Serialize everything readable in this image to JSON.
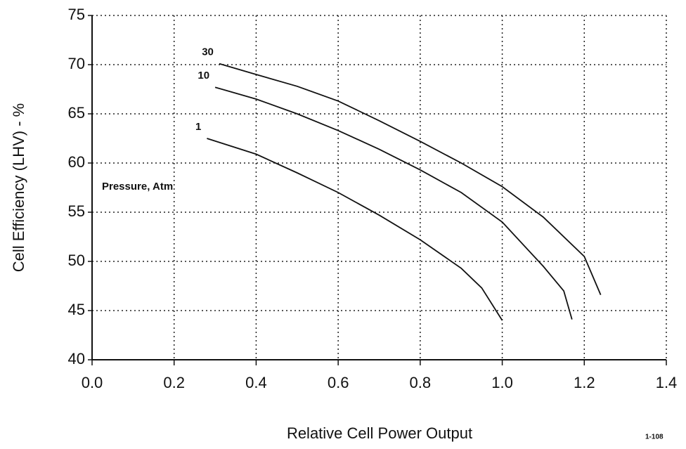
{
  "chart_data": {
    "type": "line",
    "x_label": "Relative Cell Power Output",
    "y_label": "Cell Efficiency (LHV) - %",
    "annotations": [
      "Pressure, Atm",
      "1-108"
    ],
    "series": [
      {
        "name": "30",
        "color": "#111111",
        "x": [
          0.31,
          0.4,
          0.5,
          0.6,
          0.7,
          0.8,
          0.9,
          1.0,
          1.1,
          1.2,
          1.24
        ],
        "values": [
          70.1,
          69.0,
          67.8,
          66.3,
          64.3,
          62.2,
          60.0,
          57.6,
          54.5,
          50.5,
          46.6
        ]
      },
      {
        "name": "10",
        "color": "#111111",
        "x": [
          0.3,
          0.4,
          0.5,
          0.6,
          0.7,
          0.8,
          0.9,
          1.0,
          1.1,
          1.15,
          1.17
        ],
        "values": [
          67.7,
          66.5,
          65.0,
          63.3,
          61.4,
          59.3,
          57.0,
          54.0,
          49.5,
          47.0,
          44.1
        ]
      },
      {
        "name": "1",
        "color": "#111111",
        "x": [
          0.28,
          0.4,
          0.5,
          0.6,
          0.7,
          0.8,
          0.9,
          0.95,
          1.0
        ],
        "values": [
          62.5,
          60.9,
          59.0,
          57.0,
          54.7,
          52.2,
          49.3,
          47.3,
          44.0
        ]
      }
    ],
    "xlim": [
      0,
      1.4
    ],
    "xticks": [
      {
        "value": 0,
        "label": "0.0"
      },
      0.2,
      0.4,
      0.6,
      0.8,
      {
        "value": 1,
        "label": "1.0"
      },
      1.2,
      1.4
    ],
    "ylim": [
      40,
      75
    ],
    "yticks": [
      40,
      45,
      50,
      55,
      60,
      65,
      70,
      75
    ],
    "grid": true
  }
}
